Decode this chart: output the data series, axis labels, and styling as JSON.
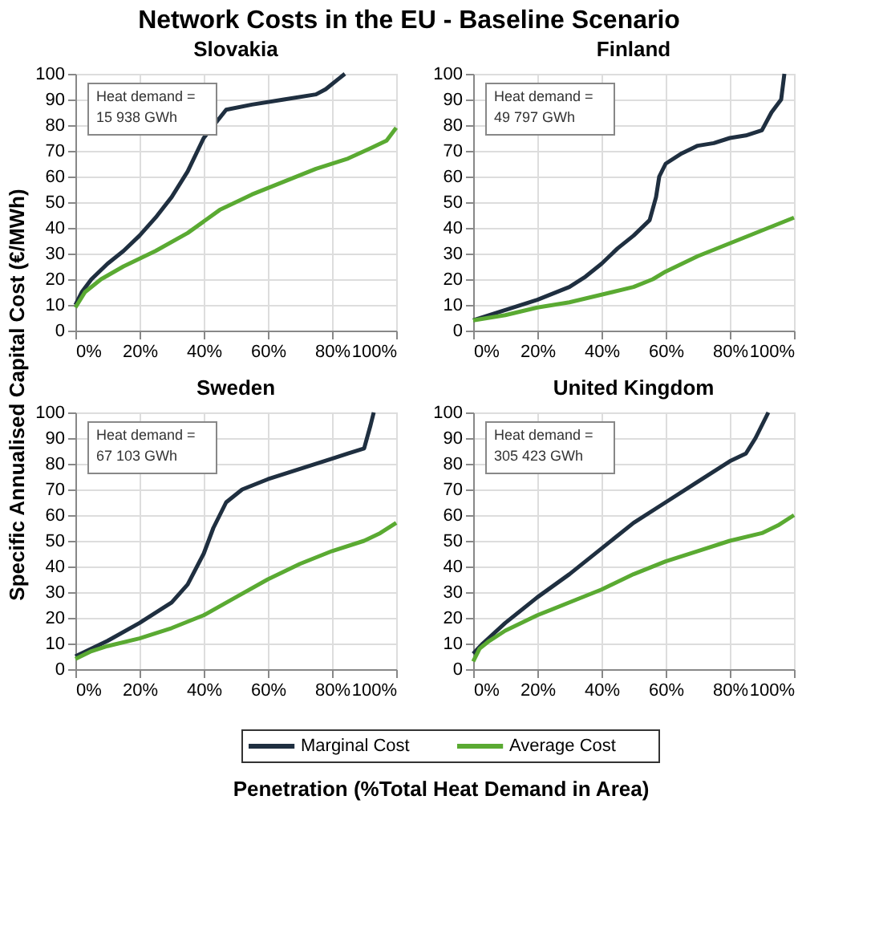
{
  "chart_data": [
    {
      "type": "line",
      "title": "Slovakia",
      "annotations": [
        "Network Costs in the EU - Baseline Scenario",
        "Specific Annualised Capital Cost (€/MWh)",
        "Penetration (%Total Heat Demand in Area)",
        "Heat demand =\n15 938 GWh"
      ],
      "xlim": [
        0,
        100
      ],
      "ylim": [
        0,
        100
      ],
      "xticks": [
        {
          "value": 0,
          "label": "0%"
        },
        {
          "value": 20,
          "label": "20%"
        },
        {
          "value": 40,
          "label": "40%"
        },
        {
          "value": 60,
          "label": "60%"
        },
        {
          "value": 80,
          "label": "80%"
        },
        {
          "value": 100,
          "label": "100%"
        }
      ],
      "yticks": [
        0,
        10,
        20,
        30,
        40,
        50,
        60,
        70,
        80,
        90,
        100
      ],
      "grid": true,
      "legend": "bottom",
      "series": [
        {
          "name": "Marginal Cost",
          "color": "#1f2f40",
          "x": [
            0,
            2,
            5,
            10,
            15,
            20,
            25,
            30,
            35,
            40,
            47,
            55,
            65,
            75,
            78,
            82,
            84
          ],
          "values": [
            10,
            15,
            20,
            26,
            31,
            37,
            44,
            52,
            62,
            75,
            86,
            88,
            90,
            92,
            94,
            98,
            100
          ]
        },
        {
          "name": "Average Cost",
          "color": "#5aaa32",
          "x": [
            0,
            3,
            8,
            15,
            25,
            35,
            45,
            55,
            65,
            75,
            85,
            92,
            97,
            100
          ],
          "values": [
            9,
            15,
            20,
            25,
            31,
            38,
            47,
            53,
            58,
            63,
            67,
            71,
            74,
            79
          ]
        }
      ]
    },
    {
      "type": "line",
      "title": "Finland",
      "annotations": [
        "Heat demand =\n49 797 GWh"
      ],
      "xlim": [
        0,
        100
      ],
      "ylim": [
        0,
        100
      ],
      "xticks": [
        {
          "value": 0,
          "label": "0%"
        },
        {
          "value": 20,
          "label": "20%"
        },
        {
          "value": 40,
          "label": "40%"
        },
        {
          "value": 60,
          "label": "60%"
        },
        {
          "value": 80,
          "label": "80%"
        },
        {
          "value": 100,
          "label": "100%"
        }
      ],
      "yticks": [
        0,
        10,
        20,
        30,
        40,
        50,
        60,
        70,
        80,
        90,
        100
      ],
      "grid": true,
      "series": [
        {
          "color": "#1f2f40",
          "x": [
            0,
            10,
            20,
            30,
            35,
            40,
            45,
            50,
            55,
            57,
            58,
            60,
            65,
            70,
            75,
            80,
            85,
            90,
            93,
            96,
            97
          ],
          "values": [
            4,
            8,
            12,
            17,
            21,
            26,
            32,
            37,
            43,
            52,
            60,
            65,
            69,
            72,
            73,
            75,
            76,
            78,
            85,
            90,
            100
          ]
        },
        {
          "color": "#5aaa32",
          "x": [
            0,
            10,
            20,
            30,
            40,
            50,
            56,
            60,
            70,
            80,
            90,
            100
          ],
          "values": [
            4,
            6,
            9,
            11,
            14,
            17,
            20,
            23,
            29,
            34,
            39,
            44
          ]
        }
      ]
    },
    {
      "type": "line",
      "title": "Sweden",
      "annotations": [
        "Heat demand =\n67 103 GWh"
      ],
      "xlim": [
        0,
        100
      ],
      "ylim": [
        0,
        100
      ],
      "xticks": [
        {
          "value": 0,
          "label": "0%"
        },
        {
          "value": 20,
          "label": "20%"
        },
        {
          "value": 40,
          "label": "40%"
        },
        {
          "value": 60,
          "label": "60%"
        },
        {
          "value": 80,
          "label": "80%"
        },
        {
          "value": 100,
          "label": "100%"
        }
      ],
      "yticks": [
        0,
        10,
        20,
        30,
        40,
        50,
        60,
        70,
        80,
        90,
        100
      ],
      "grid": true,
      "series": [
        {
          "color": "#1f2f40",
          "x": [
            0,
            10,
            20,
            30,
            35,
            40,
            43,
            47,
            52,
            60,
            70,
            80,
            85,
            90,
            92,
            93
          ],
          "values": [
            5,
            11,
            18,
            26,
            33,
            45,
            55,
            65,
            70,
            74,
            78,
            82,
            84,
            86,
            95,
            100
          ]
        },
        {
          "color": "#5aaa32",
          "x": [
            0,
            5,
            10,
            20,
            30,
            40,
            50,
            60,
            70,
            80,
            90,
            95,
            100
          ],
          "values": [
            4,
            7,
            9,
            12,
            16,
            21,
            28,
            35,
            41,
            46,
            50,
            53,
            57
          ]
        }
      ]
    },
    {
      "type": "line",
      "title": "United Kingdom",
      "annotations": [
        "Heat demand =\n305 423 GWh"
      ],
      "xlim": [
        0,
        100
      ],
      "ylim": [
        0,
        100
      ],
      "xticks": [
        {
          "value": 0,
          "label": "0%"
        },
        {
          "value": 20,
          "label": "20%"
        },
        {
          "value": 40,
          "label": "40%"
        },
        {
          "value": 60,
          "label": "60%"
        },
        {
          "value": 80,
          "label": "80%"
        },
        {
          "value": 100,
          "label": "100%"
        }
      ],
      "yticks": [
        0,
        10,
        20,
        30,
        40,
        50,
        60,
        70,
        80,
        90,
        100
      ],
      "grid": true,
      "series": [
        {
          "color": "#1f2f40",
          "x": [
            0,
            3,
            10,
            20,
            30,
            40,
            50,
            60,
            70,
            75,
            80,
            85,
            88,
            92
          ],
          "values": [
            6,
            10,
            18,
            28,
            37,
            47,
            57,
            65,
            73,
            77,
            81,
            84,
            90,
            100
          ]
        },
        {
          "color": "#5aaa32",
          "x": [
            0,
            2,
            5,
            10,
            20,
            30,
            40,
            50,
            60,
            70,
            80,
            90,
            95,
            100
          ],
          "values": [
            3,
            8,
            11,
            15,
            21,
            26,
            31,
            37,
            42,
            46,
            50,
            53,
            56,
            60
          ]
        }
      ]
    }
  ]
}
